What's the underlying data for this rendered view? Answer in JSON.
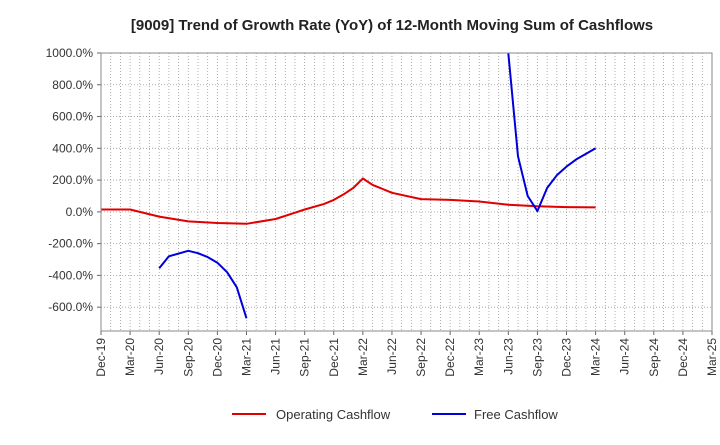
{
  "chart_data": {
    "type": "line",
    "title": "[9009]  Trend of Growth Rate (YoY) of 12-Month Moving Sum of Cashflows",
    "xlabel": "",
    "ylabel": "",
    "x_ticks": [
      "Dec-19",
      "Mar-20",
      "Jun-20",
      "Sep-20",
      "Dec-20",
      "Mar-21",
      "Jun-21",
      "Sep-21",
      "Dec-21",
      "Mar-22",
      "Jun-22",
      "Sep-22",
      "Dec-22",
      "Mar-23",
      "Jun-23",
      "Sep-23",
      "Dec-23",
      "Mar-24",
      "Jun-24",
      "Sep-24",
      "Dec-24",
      "Mar-25"
    ],
    "y_ticks": [
      1000,
      800,
      600,
      400,
      200,
      0,
      -200,
      -400,
      -600
    ],
    "y_tick_labels": [
      "1000.0%",
      "800.0%",
      "600.0%",
      "400.0%",
      "200.0%",
      "0.0%",
      "-200.0%",
      "-400.0%",
      "-600.0%"
    ],
    "ylim": [
      -750,
      1000
    ],
    "grid": true,
    "legend_position": "bottom",
    "series": [
      {
        "name": "Operating Cashflow",
        "color": "#e00000",
        "points": [
          [
            "Dec-19",
            15
          ],
          [
            "Mar-20",
            15
          ],
          [
            "Jun-20",
            -30
          ],
          [
            "Sep-20",
            -60
          ],
          [
            "Dec-20",
            -70
          ],
          [
            "Mar-21",
            -75
          ],
          [
            "Jun-21",
            -45
          ],
          [
            "Aug-21",
            -5
          ],
          [
            "Sep-21",
            15
          ],
          [
            "Nov-21",
            50
          ],
          [
            "Dec-21",
            75
          ],
          [
            "Jan-22",
            110
          ],
          [
            "Feb-22",
            150
          ],
          [
            "Mar-22",
            210
          ],
          [
            "Apr-22",
            170
          ],
          [
            "Jun-22",
            120
          ],
          [
            "Sep-22",
            80
          ],
          [
            "Dec-22",
            75
          ],
          [
            "Mar-23",
            65
          ],
          [
            "Jun-23",
            45
          ],
          [
            "Sep-23",
            35
          ],
          [
            "Dec-23",
            30
          ],
          [
            "Mar-24",
            28
          ]
        ]
      },
      {
        "name": "Free Cashflow",
        "color": "#0000dd",
        "segments": [
          [
            [
              "Jun-20",
              -355
            ],
            [
              "Jul-20",
              -280
            ],
            [
              "Sep-20",
              -245
            ],
            [
              "Oct-20",
              -260
            ],
            [
              "Nov-20",
              -285
            ],
            [
              "Dec-20",
              -320
            ],
            [
              "Jan-21",
              -380
            ],
            [
              "Feb-21",
              -475
            ],
            [
              "Mar-21",
              -670
            ]
          ],
          [
            [
              "Jun-23",
              1000
            ],
            [
              "Jul-23",
              350
            ],
            [
              "Aug-23",
              100
            ],
            [
              "Sep-23",
              5
            ],
            [
              "Oct-23",
              150
            ],
            [
              "Nov-23",
              230
            ],
            [
              "Dec-23",
              285
            ],
            [
              "Jan-24",
              330
            ],
            [
              "Feb-24",
              365
            ],
            [
              "Mar-24",
              400
            ]
          ]
        ]
      }
    ]
  }
}
